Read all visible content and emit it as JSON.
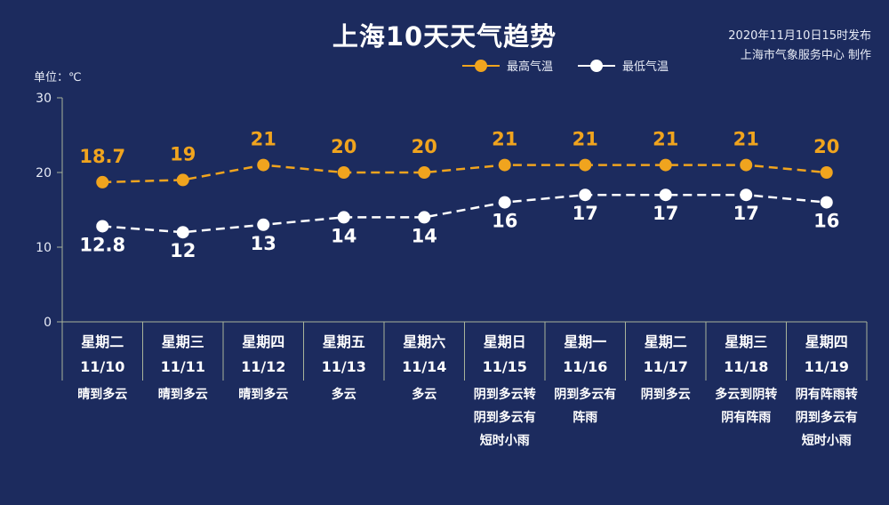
{
  "header": {
    "title": "上海10天天气趋势",
    "publish_time": "2020年11月10日15时发布",
    "publisher": "上海市气象服务中心 制作",
    "unit_label": "单位：℃"
  },
  "legend": {
    "high_label": "最高气温",
    "low_label": "最低气温"
  },
  "colors": {
    "background": "#1c2b5e",
    "high": "#f0a41e",
    "low": "#ffffff",
    "axis": "#a8b39a"
  },
  "chart_data": {
    "type": "line",
    "ylim": [
      0,
      30
    ],
    "yticks": [
      0,
      10,
      20,
      30
    ],
    "ylabel": "单位：℃",
    "grid": false,
    "legend_position": "top-right",
    "categories": [
      {
        "weekday": "星期二",
        "date": "11/10",
        "weather": [
          "晴到多云"
        ]
      },
      {
        "weekday": "星期三",
        "date": "11/11",
        "weather": [
          "晴到多云"
        ]
      },
      {
        "weekday": "星期四",
        "date": "11/12",
        "weather": [
          "晴到多云"
        ]
      },
      {
        "weekday": "星期五",
        "date": "11/13",
        "weather": [
          "多云"
        ]
      },
      {
        "weekday": "星期六",
        "date": "11/14",
        "weather": [
          "多云"
        ]
      },
      {
        "weekday": "星期日",
        "date": "11/15",
        "weather": [
          "阴到多云转",
          "阴到多云有",
          "短时小雨"
        ]
      },
      {
        "weekday": "星期一",
        "date": "11/16",
        "weather": [
          "阴到多云有",
          "阵雨"
        ]
      },
      {
        "weekday": "星期二",
        "date": "11/17",
        "weather": [
          "阴到多云"
        ]
      },
      {
        "weekday": "星期三",
        "date": "11/18",
        "weather": [
          "多云到阴转",
          "阴有阵雨"
        ]
      },
      {
        "weekday": "星期四",
        "date": "11/19",
        "weather": [
          "阴有阵雨转",
          "阴到多云有",
          "短时小雨"
        ]
      }
    ],
    "series": [
      {
        "name": "最高气温",
        "values": [
          18.7,
          19,
          21,
          20,
          20,
          21,
          21,
          21,
          21,
          20
        ],
        "labels": [
          "18.7",
          "19",
          "21",
          "20",
          "20",
          "21",
          "21",
          "21",
          "21",
          "20"
        ]
      },
      {
        "name": "最低气温",
        "values": [
          12.8,
          12,
          13,
          14,
          14,
          16,
          17,
          17,
          17,
          16
        ],
        "labels": [
          "12.8",
          "12",
          "13",
          "14",
          "14",
          "16",
          "17",
          "17",
          "17",
          "16"
        ]
      }
    ]
  }
}
